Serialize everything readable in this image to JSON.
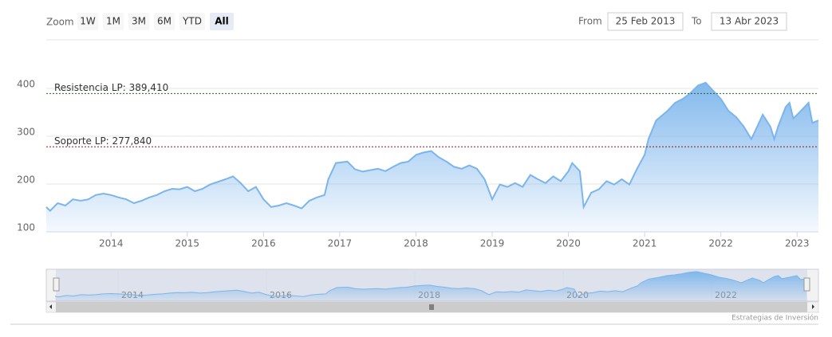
{
  "zoom": {
    "label": "Zoom",
    "buttons": [
      "1W",
      "1M",
      "3M",
      "6M",
      "YTD",
      "All"
    ],
    "selected": 5
  },
  "range": {
    "from_label": "From",
    "from": "25 Feb 2013",
    "to_label": "To",
    "to": "13 Abr 2023"
  },
  "chart_data": {
    "type": "area",
    "x": [
      2013.15,
      2013.2,
      2013.3,
      2013.4,
      2013.5,
      2013.6,
      2013.7,
      2013.8,
      2013.9,
      2014.0,
      2014.1,
      2014.2,
      2014.3,
      2014.4,
      2014.5,
      2014.6,
      2014.7,
      2014.8,
      2014.9,
      2015.0,
      2015.1,
      2015.2,
      2015.3,
      2015.5,
      2015.6,
      2015.7,
      2015.8,
      2015.9,
      2016.0,
      2016.1,
      2016.2,
      2016.3,
      2016.4,
      2016.5,
      2016.6,
      2016.7,
      2016.8,
      2016.85,
      2016.95,
      2017.1,
      2017.2,
      2017.3,
      2017.5,
      2017.6,
      2017.7,
      2017.8,
      2017.9,
      2018.0,
      2018.1,
      2018.2,
      2018.3,
      2018.4,
      2018.5,
      2018.6,
      2018.7,
      2018.8,
      2018.9,
      2019.0,
      2019.1,
      2019.2,
      2019.3,
      2019.4,
      2019.5,
      2019.6,
      2019.7,
      2019.8,
      2019.9,
      2020.0,
      2020.05,
      2020.15,
      2020.2,
      2020.3,
      2020.4,
      2020.5,
      2020.6,
      2020.7,
      2020.8,
      2020.9,
      2021.0,
      2021.05,
      2021.15,
      2021.3,
      2021.4,
      2021.5,
      2021.6,
      2021.7,
      2021.8,
      2021.9,
      2022.0,
      2022.1,
      2022.2,
      2022.3,
      2022.4,
      2022.45,
      2022.55,
      2022.65,
      2022.7,
      2022.75,
      2022.85,
      2022.9,
      2022.95,
      2023.05,
      2023.15,
      2023.2,
      2023.28
    ],
    "series": [
      {
        "color": "#7cb5ec",
        "values": [
          152,
          144,
          160,
          155,
          168,
          165,
          168,
          177,
          180,
          177,
          172,
          168,
          160,
          165,
          172,
          177,
          185,
          190,
          189,
          194,
          185,
          190,
          199,
          210,
          216,
          202,
          185,
          194,
          168,
          152,
          155,
          160,
          155,
          149,
          165,
          172,
          177,
          210,
          244,
          247,
          231,
          226,
          232,
          227,
          236,
          244,
          247,
          261,
          266,
          269,
          256,
          247,
          236,
          232,
          239,
          232,
          210,
          168,
          199,
          194,
          202,
          194,
          219,
          210,
          202,
          216,
          206,
          227,
          244,
          227,
          152,
          182,
          189,
          206,
          199,
          210,
          199,
          232,
          261,
          294,
          333,
          353,
          370,
          378,
          390,
          406,
          412,
          395,
          378,
          353,
          340,
          320,
          294,
          311,
          345,
          320,
          294,
          320,
          361,
          370,
          337,
          353,
          370,
          328,
          333
        ]
      }
    ],
    "xlim": [
      2013.15,
      2023.28
    ],
    "xticks": [
      2014,
      2015,
      2016,
      2017,
      2018,
      2019,
      2020,
      2021,
      2022,
      2023
    ],
    "ylim": [
      100,
      420
    ],
    "yticks": [
      100,
      200,
      300,
      400
    ],
    "grid": true,
    "plot_lines": [
      {
        "value": 389.41,
        "label": "Resistencia LP: 389,410",
        "color": "#1a6b1a"
      },
      {
        "value": 277.84,
        "label": "Soporte LP: 277,840",
        "color": "#8b1a1a"
      }
    ],
    "navigator_ticks": [
      2014,
      2016,
      2018,
      2020,
      2022
    ]
  },
  "credits": "Estrategias de Inversión"
}
